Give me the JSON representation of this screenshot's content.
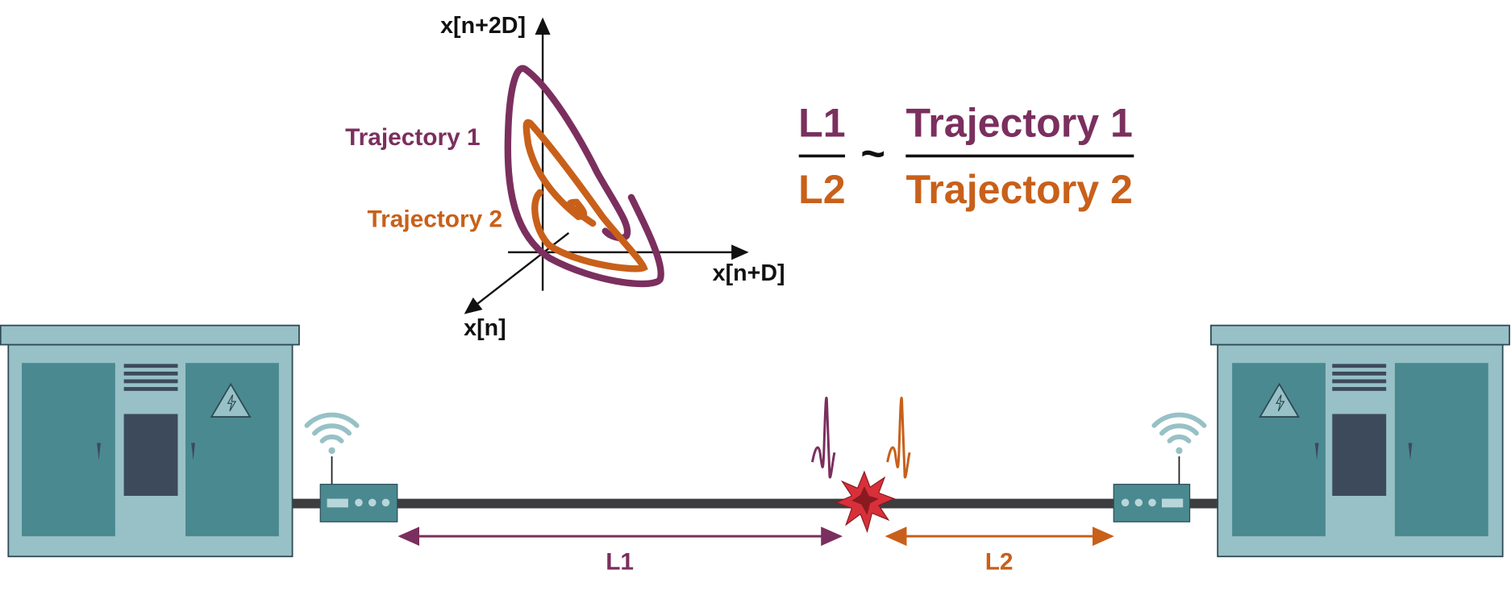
{
  "phase_plot": {
    "axes": {
      "vertical": "x[n+2D]",
      "horizontal": "x[n+D]",
      "depth": "x[n]"
    },
    "trajectories": [
      "Trajectory 1",
      "Trajectory 2"
    ]
  },
  "formula": {
    "left_numerator": "L1",
    "left_denominator": "L2",
    "relation": "~",
    "right_numerator": "Trajectory 1",
    "right_denominator": "Trajectory 2"
  },
  "cable": {
    "segments": [
      "L1",
      "L2"
    ]
  }
}
